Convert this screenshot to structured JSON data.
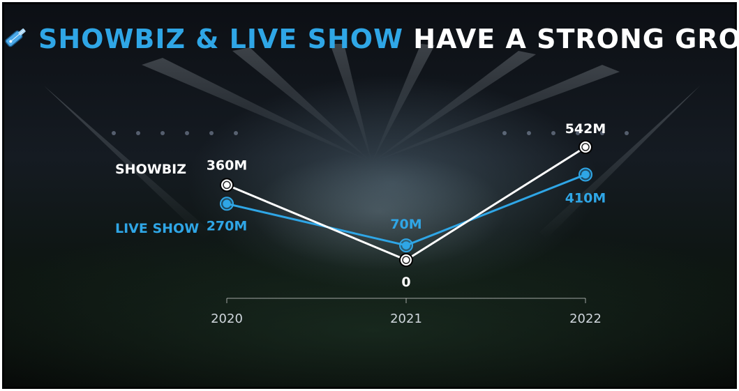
{
  "title": {
    "highlight": "SHOWBIZ & LIVE SHOW",
    "rest": "HAVE A STRONG GROWTH",
    "icon": "guitar-icon"
  },
  "colors": {
    "showbiz": "#ffffff",
    "live_show": "#2fa6e6",
    "title_highlight": "#2fa6e6"
  },
  "legend": {
    "showbiz": "SHOWBIZ",
    "live_show": "LIVE SHOW"
  },
  "chart_data": {
    "type": "line",
    "categories": [
      "2020",
      "2021",
      "2022"
    ],
    "series": [
      {
        "name": "SHOWBIZ",
        "values": [
          360,
          0,
          542
        ],
        "labels": [
          "360M",
          "0",
          "542M"
        ]
      },
      {
        "name": "LIVE SHOW",
        "values": [
          270,
          70,
          410
        ],
        "labels": [
          "270M",
          "70M",
          "410M"
        ]
      }
    ],
    "ylim": [
      0,
      542
    ],
    "grid": false,
    "legend_position": "left"
  }
}
